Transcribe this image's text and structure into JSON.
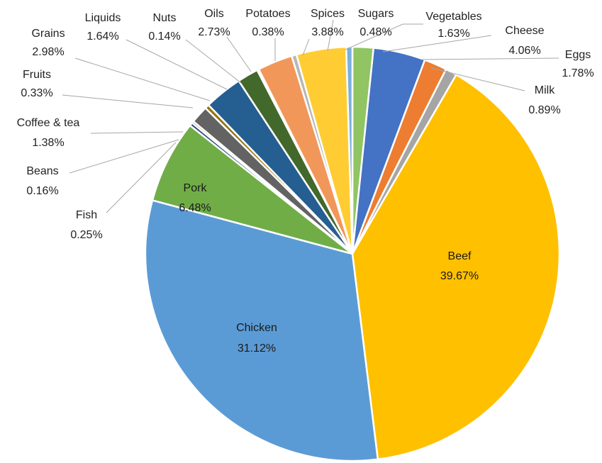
{
  "chart_data": {
    "type": "pie",
    "title": "",
    "start_angle_deg": 0,
    "direction": "clockwise",
    "slices": [
      {
        "name": "Vegetables",
        "pct_label": "1.63%",
        "value": 1.63,
        "color": "#91C463"
      },
      {
        "name": "Cheese",
        "pct_label": "4.06%",
        "value": 4.06,
        "color": "#4472C4"
      },
      {
        "name": "Eggs",
        "pct_label": "1.78%",
        "value": 1.78,
        "color": "#ED7D31"
      },
      {
        "name": "Milk",
        "pct_label": "0.89%",
        "value": 0.89,
        "color": "#A5A5A5"
      },
      {
        "name": "Beef",
        "pct_label": "39.67%",
        "value": 39.67,
        "color": "#FFC000"
      },
      {
        "name": "Chicken",
        "pct_label": "31.12%",
        "value": 31.12,
        "color": "#5B9BD5"
      },
      {
        "name": "Pork",
        "pct_label": "6.48%",
        "value": 6.48,
        "color": "#70AD47"
      },
      {
        "name": "Fish",
        "pct_label": "0.25%",
        "value": 0.25,
        "color": "#264478"
      },
      {
        "name": "Beans",
        "pct_label": "0.16%",
        "value": 0.16,
        "color": "#9E480E"
      },
      {
        "name": "Coffee & tea",
        "pct_label": "1.38%",
        "value": 1.38,
        "color": "#636363"
      },
      {
        "name": "Fruits",
        "pct_label": "0.33%",
        "value": 0.33,
        "color": "#997300"
      },
      {
        "name": "Grains",
        "pct_label": "2.98%",
        "value": 2.98,
        "color": "#255E91"
      },
      {
        "name": "Liquids",
        "pct_label": "1.64%",
        "value": 1.64,
        "color": "#43682B"
      },
      {
        "name": "Nuts",
        "pct_label": "0.14%",
        "value": 0.14,
        "color": "#698ED0"
      },
      {
        "name": "Oils",
        "pct_label": "2.73%",
        "value": 2.73,
        "color": "#F1975A"
      },
      {
        "name": "Potatoes",
        "pct_label": "0.38%",
        "value": 0.38,
        "color": "#B7B7B7"
      },
      {
        "name": "Spices",
        "pct_label": "3.88%",
        "value": 3.88,
        "color": "#FFCD33"
      },
      {
        "name": "Sugars",
        "pct_label": "0.48%",
        "value": 0.48,
        "color": "#7CAFDD"
      }
    ],
    "leader_line_color": "#A6A6A6",
    "legend": "none"
  }
}
